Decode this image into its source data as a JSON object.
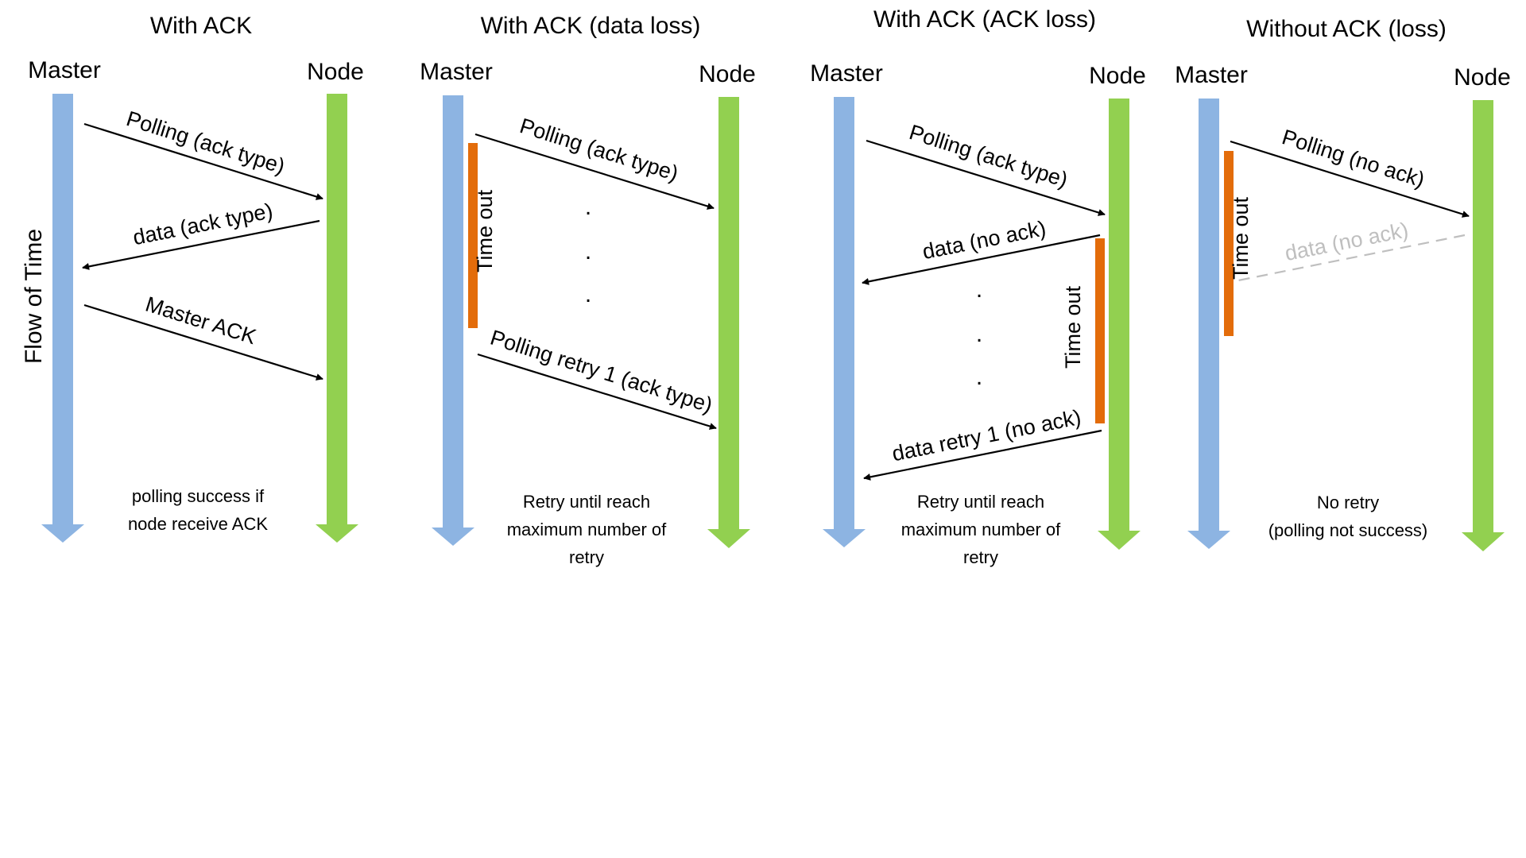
{
  "colors": {
    "master_line": "#8db4e2",
    "node_line": "#92d050",
    "timeout_bar": "#e36c0a",
    "arrow": "#000000",
    "lost_arrow": "#bfbfbf"
  },
  "side_label": "Flow of Time",
  "panels": [
    {
      "title": "With ACK",
      "master_label": "Master",
      "node_label": "Node",
      "messages": [
        {
          "label": "Polling (ack type)",
          "direction": "to-node"
        },
        {
          "label": "data (ack type)",
          "direction": "to-master"
        },
        {
          "label": "Master ACK",
          "direction": "to-node"
        }
      ],
      "note": [
        "polling success if",
        "node receive ACK"
      ]
    },
    {
      "title": "With ACK (data loss)",
      "master_label": "Master",
      "node_label": "Node",
      "timeout_label": "Time out",
      "timeout_side": "master",
      "messages": [
        {
          "label": "Polling (ack type)",
          "direction": "to-node"
        },
        {
          "label": "Polling retry 1 (ack type)",
          "direction": "to-node"
        }
      ],
      "dots": [
        ".",
        ".",
        "."
      ],
      "note": [
        "Retry until reach",
        "maximum number of",
        "retry"
      ]
    },
    {
      "title": "With ACK (ACK loss)",
      "master_label": "Master",
      "node_label": "Node",
      "timeout_label": "Time out",
      "timeout_side": "node",
      "messages": [
        {
          "label": "Polling (ack type)",
          "direction": "to-node"
        },
        {
          "label": "data (no ack)",
          "direction": "to-master"
        },
        {
          "label": "data retry 1 (no ack)",
          "direction": "to-master"
        }
      ],
      "dots": [
        ".",
        ".",
        "."
      ],
      "note": [
        "Retry until reach",
        "maximum number of",
        "retry"
      ]
    },
    {
      "title": "Without ACK (loss)",
      "master_label": "Master",
      "node_label": "Node",
      "timeout_label": "Time out",
      "timeout_side": "master",
      "messages": [
        {
          "label": "Polling (no ack)",
          "direction": "to-node"
        },
        {
          "label": "data (no ack)",
          "direction": "to-master",
          "lost": true
        }
      ],
      "note": [
        "No retry",
        "(polling not success)"
      ]
    }
  ]
}
